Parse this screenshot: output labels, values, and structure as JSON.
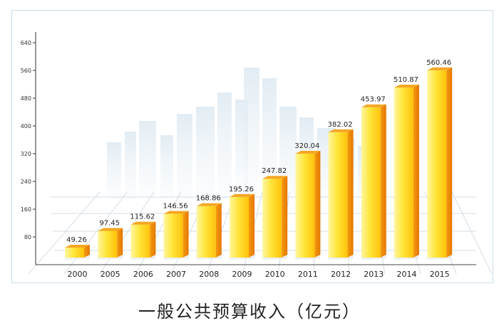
{
  "chart_data": {
    "type": "bar",
    "title": "一般公共预算收入（亿元）",
    "categories": [
      "2000",
      "2005",
      "2006",
      "2007",
      "2008",
      "2009",
      "2010",
      "2011",
      "2012",
      "2013",
      "2014",
      "2015"
    ],
    "values": [
      49.26,
      97.45,
      115.62,
      146.56,
      168.86,
      195.26,
      247.82,
      320.04,
      382.02,
      453.97,
      510.87,
      560.46
    ],
    "value_labels": [
      "49.26",
      "97.45",
      "115.62",
      "146.56",
      "168.86",
      "195.26",
      "247.82",
      "320.04",
      "382.02",
      "453.97",
      "510.87",
      "560.46"
    ],
    "y_ticks": [
      "80",
      "160",
      "240",
      "320",
      "400",
      "480",
      "560",
      "640"
    ],
    "ylim": [
      0,
      640
    ],
    "xlabel": "",
    "ylabel": "",
    "grid": false,
    "bar_colors": {
      "front_light": "#fff27a",
      "front_mid": "#ffc40a",
      "side": "#f08a00",
      "top": "#ffd84a"
    },
    "background": "faint city skyline with perspective grid floor"
  }
}
